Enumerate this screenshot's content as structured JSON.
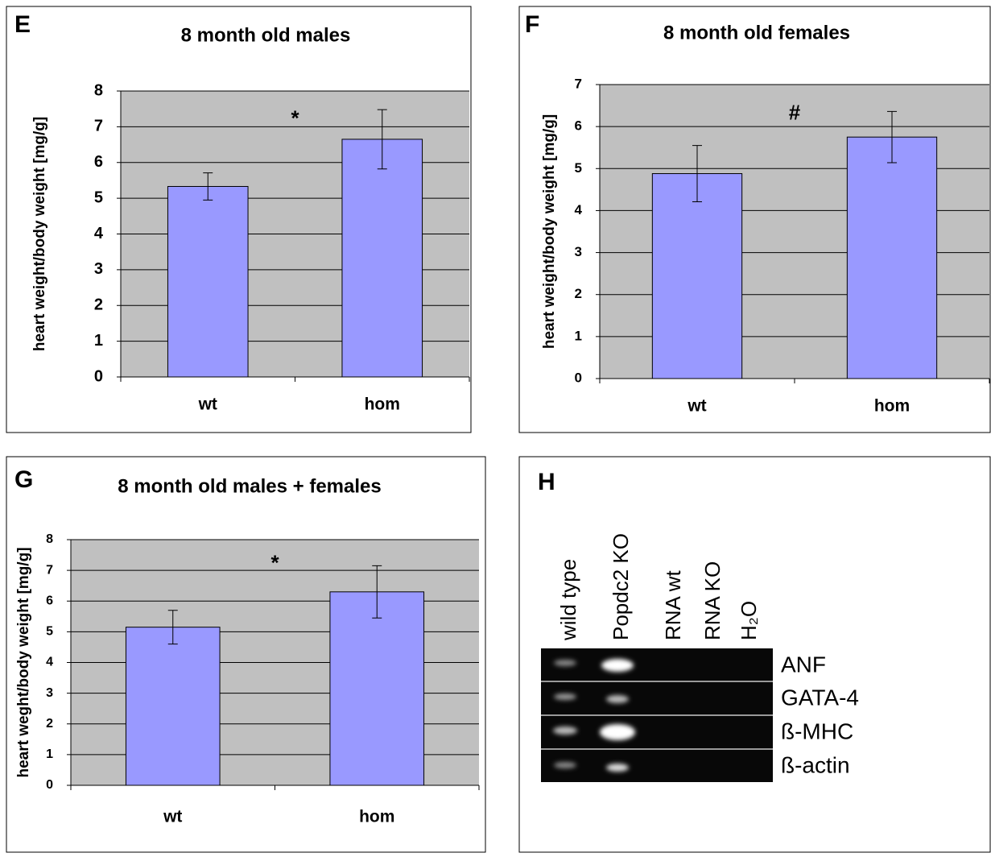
{
  "chart_data": [
    {
      "type": "bar",
      "panel_label": "E",
      "title": "8 month old males",
      "y_label": "heart weight/body weight [mg/g]",
      "categories": [
        "wt",
        "hom"
      ],
      "values": [
        5.33,
        6.65
      ],
      "errors": [
        0.38,
        0.83
      ],
      "color": "#9999ff",
      "ylim": [
        0,
        8
      ],
      "yticks": [
        0,
        1,
        2,
        3,
        4,
        5,
        6,
        7,
        8
      ],
      "grid": true,
      "annotation": "*"
    },
    {
      "type": "bar",
      "panel_label": "F",
      "title": "8 month old females",
      "y_label": "heart weight/body weight [mg/g]",
      "categories": [
        "wt",
        "hom"
      ],
      "values": [
        4.88,
        5.75
      ],
      "errors": [
        0.67,
        0.61
      ],
      "color": "#9999ff",
      "ylim": [
        0,
        7
      ],
      "yticks": [
        0,
        1,
        2,
        3,
        4,
        5,
        6,
        7
      ],
      "grid": true,
      "annotation": "#"
    },
    {
      "type": "bar",
      "panel_label": "G",
      "title": "8 month old males + females",
      "y_label": "heart weght/body weight [mg/g]",
      "categories": [
        "wt",
        "hom"
      ],
      "values": [
        5.15,
        6.3
      ],
      "errors": [
        0.55,
        0.85
      ],
      "color": "#9999ff",
      "ylim": [
        0,
        8
      ],
      "yticks": [
        0,
        1,
        2,
        3,
        4,
        5,
        6,
        7,
        8
      ],
      "grid": true,
      "annotation": "*"
    }
  ],
  "gel": {
    "panel_label": "H",
    "lanes": [
      "wild type",
      "Popdc2 KO",
      "RNA wt",
      "RNA KO",
      "H₂O"
    ],
    "genes": [
      "ANF",
      "GATA-4",
      "ß-MHC",
      "ß-actin"
    ]
  }
}
